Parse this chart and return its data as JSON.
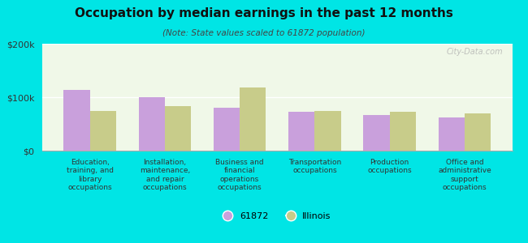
{
  "title": "Occupation by median earnings in the past 12 months",
  "subtitle": "(Note: State values scaled to 61872 population)",
  "background_color": "#00e5e5",
  "plot_bg": "#f0f8e8",
  "categories": [
    "Education,\ntraining, and\nlibrary\noccupations",
    "Installation,\nmaintenance,\nand repair\noccupations",
    "Business and\nfinancial\noperations\noccupations",
    "Transportation\noccupations",
    "Production\noccupations",
    "Office and\nadministrative\nsupport\noccupations"
  ],
  "values_61872": [
    113000,
    100000,
    80000,
    72000,
    67000,
    62000
  ],
  "values_illinois": [
    75000,
    83000,
    118000,
    75000,
    72000,
    70000
  ],
  "color_61872": "#c9a0dc",
  "color_illinois": "#c8cc8a",
  "bar_width": 0.35,
  "ylim": [
    0,
    200000
  ],
  "yticks": [
    0,
    100000,
    200000
  ],
  "ytick_labels": [
    "$0",
    "$100k",
    "$200k"
  ],
  "legend_label_61872": "61872",
  "legend_label_illinois": "Illinois",
  "watermark": "City-Data.com"
}
